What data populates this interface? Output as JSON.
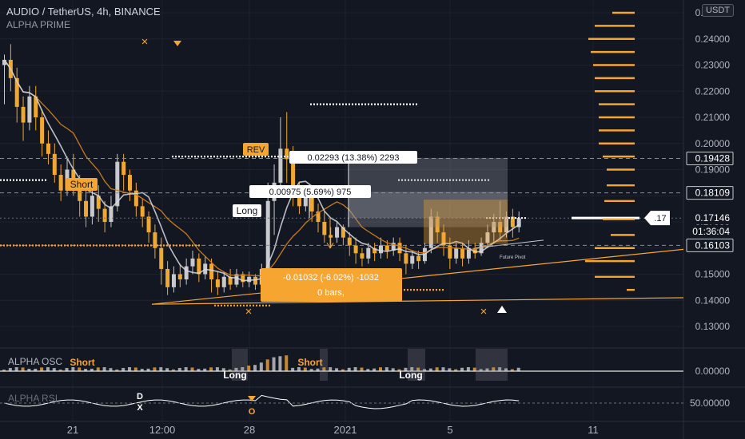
{
  "header": {
    "symbol": "AUDIO / TetherUS, 4h, BINANCE",
    "indicator": "ALPHA PRIME",
    "currency": "USDT"
  },
  "panes": {
    "osc_label": "ALPHA OSC",
    "rsi_label": "ALPHA RSI"
  },
  "colors": {
    "background": "#131722",
    "up": "#c8c9cc",
    "down": "#f0a830",
    "orange": "#f7a531",
    "white": "#ffffff",
    "grid": "#1e2230"
  },
  "chart_data": {
    "type": "candlestick",
    "y_axis": {
      "range": [
        0.125,
        0.26
      ],
      "ticks": [
        "0.13000",
        "0.14000",
        "0.15000",
        "0.16000",
        "0.17000",
        "0.18000",
        "0.19000",
        "0.20000",
        "0.21000",
        "0.22000",
        "0.23000",
        "0.24000",
        "0.25000"
      ],
      "tick_values": [
        0.13,
        0.14,
        0.15,
        0.16,
        0.17,
        0.18,
        0.19,
        0.2,
        0.21,
        0.22,
        0.23,
        0.24,
        0.25
      ]
    },
    "x_axis": {
      "labels": [
        "21",
        "12:00",
        "28",
        "2021",
        "5",
        "11"
      ]
    },
    "price_labels": [
      {
        "text": "0.19428",
        "value": 0.19428,
        "style": "outline"
      },
      {
        "text": "0.18109",
        "value": 0.18109,
        "style": "outline"
      },
      {
        "text": "0.17146",
        "value": 0.17146,
        "style": "plain"
      },
      {
        "text": "01:36:04",
        "value": 0.16631,
        "style": "plain"
      },
      {
        "text": "0.16103",
        "value": 0.16103,
        "style": "outline"
      }
    ],
    "current_price_marker": ".17",
    "annotations": [
      {
        "text": "Short",
        "kind": "tag"
      },
      {
        "text": "REV",
        "kind": "tag"
      },
      {
        "text": "Long",
        "kind": "tag-white"
      },
      {
        "text": "0.02293 (13.38%) 2293",
        "kind": "measure"
      },
      {
        "text": "0.00975 (5.69%) 975",
        "kind": "measure"
      },
      {
        "text": "-0.01032 (-6.02%) -1032",
        "kind": "measure-neg"
      },
      {
        "text": "0 bars,",
        "kind": "measure-neg"
      },
      {
        "text": "Future Pivot",
        "kind": "small"
      }
    ],
    "candles": [
      [
        0.23,
        0.232,
        0.215,
        0.234
      ],
      [
        0.232,
        0.225,
        0.22,
        0.238
      ],
      [
        0.225,
        0.214,
        0.208,
        0.229
      ],
      [
        0.214,
        0.208,
        0.201,
        0.218
      ],
      [
        0.208,
        0.218,
        0.205,
        0.222
      ],
      [
        0.218,
        0.21,
        0.205,
        0.222
      ],
      [
        0.21,
        0.2,
        0.195,
        0.213
      ],
      [
        0.2,
        0.196,
        0.192,
        0.205
      ],
      [
        0.196,
        0.188,
        0.185,
        0.2
      ],
      [
        0.188,
        0.182,
        0.178,
        0.192
      ],
      [
        0.182,
        0.19,
        0.18,
        0.195
      ],
      [
        0.19,
        0.185,
        0.18,
        0.196
      ],
      [
        0.185,
        0.178,
        0.172,
        0.188
      ],
      [
        0.178,
        0.172,
        0.168,
        0.182
      ],
      [
        0.172,
        0.18,
        0.169,
        0.183
      ],
      [
        0.18,
        0.175,
        0.17,
        0.184
      ],
      [
        0.175,
        0.17,
        0.166,
        0.178
      ],
      [
        0.17,
        0.176,
        0.168,
        0.18
      ],
      [
        0.176,
        0.193,
        0.174,
        0.196
      ],
      [
        0.193,
        0.188,
        0.182,
        0.196
      ],
      [
        0.188,
        0.182,
        0.178,
        0.19
      ],
      [
        0.182,
        0.176,
        0.172,
        0.185
      ],
      [
        0.176,
        0.172,
        0.168,
        0.179
      ],
      [
        0.172,
        0.166,
        0.162,
        0.174
      ],
      [
        0.166,
        0.16,
        0.156,
        0.169
      ],
      [
        0.16,
        0.152,
        0.146,
        0.164
      ],
      [
        0.152,
        0.145,
        0.142,
        0.155
      ],
      [
        0.145,
        0.15,
        0.143,
        0.153
      ],
      [
        0.15,
        0.148,
        0.145,
        0.154
      ],
      [
        0.148,
        0.153,
        0.146,
        0.156
      ],
      [
        0.153,
        0.156,
        0.15,
        0.159
      ],
      [
        0.156,
        0.15,
        0.147,
        0.158
      ],
      [
        0.15,
        0.154,
        0.148,
        0.157
      ],
      [
        0.154,
        0.148,
        0.143,
        0.156
      ],
      [
        0.148,
        0.145,
        0.142,
        0.151
      ],
      [
        0.145,
        0.149,
        0.143,
        0.151
      ],
      [
        0.149,
        0.146,
        0.144,
        0.152
      ],
      [
        0.146,
        0.15,
        0.145,
        0.152
      ],
      [
        0.15,
        0.147,
        0.145,
        0.151
      ],
      [
        0.147,
        0.149,
        0.145,
        0.151
      ],
      [
        0.149,
        0.146,
        0.144,
        0.15
      ],
      [
        0.146,
        0.152,
        0.145,
        0.154
      ],
      [
        0.152,
        0.178,
        0.15,
        0.185
      ],
      [
        0.178,
        0.185,
        0.165,
        0.192
      ],
      [
        0.185,
        0.198,
        0.18,
        0.21
      ],
      [
        0.198,
        0.194,
        0.185,
        0.212
      ],
      [
        0.194,
        0.18,
        0.176,
        0.199
      ],
      [
        0.18,
        0.176,
        0.173,
        0.185
      ],
      [
        0.176,
        0.18,
        0.174,
        0.184
      ],
      [
        0.18,
        0.174,
        0.17,
        0.183
      ],
      [
        0.174,
        0.17,
        0.166,
        0.177
      ],
      [
        0.17,
        0.165,
        0.162,
        0.174
      ],
      [
        0.165,
        0.164,
        0.16,
        0.168
      ],
      [
        0.164,
        0.168,
        0.162,
        0.17
      ],
      [
        0.168,
        0.164,
        0.161,
        0.169
      ],
      [
        0.164,
        0.161,
        0.157,
        0.166
      ],
      [
        0.161,
        0.158,
        0.154,
        0.164
      ],
      [
        0.158,
        0.156,
        0.153,
        0.16
      ],
      [
        0.156,
        0.16,
        0.154,
        0.162
      ],
      [
        0.16,
        0.158,
        0.155,
        0.162
      ],
      [
        0.158,
        0.161,
        0.156,
        0.164
      ],
      [
        0.161,
        0.159,
        0.156,
        0.163
      ],
      [
        0.159,
        0.162,
        0.157,
        0.164
      ],
      [
        0.162,
        0.158,
        0.155,
        0.164
      ],
      [
        0.158,
        0.154,
        0.15,
        0.161
      ],
      [
        0.154,
        0.157,
        0.152,
        0.159
      ],
      [
        0.157,
        0.155,
        0.152,
        0.159
      ],
      [
        0.155,
        0.16,
        0.154,
        0.162
      ],
      [
        0.16,
        0.172,
        0.158,
        0.175
      ],
      [
        0.172,
        0.166,
        0.162,
        0.174
      ],
      [
        0.166,
        0.161,
        0.157,
        0.169
      ],
      [
        0.161,
        0.156,
        0.152,
        0.164
      ],
      [
        0.156,
        0.16,
        0.154,
        0.162
      ],
      [
        0.16,
        0.156,
        0.153,
        0.162
      ],
      [
        0.156,
        0.16,
        0.154,
        0.163
      ],
      [
        0.16,
        0.158,
        0.156,
        0.162
      ],
      [
        0.158,
        0.162,
        0.157,
        0.164
      ],
      [
        0.162,
        0.166,
        0.16,
        0.169
      ],
      [
        0.166,
        0.17,
        0.162,
        0.173
      ],
      [
        0.17,
        0.166,
        0.163,
        0.178
      ],
      [
        0.166,
        0.172,
        0.164,
        0.174
      ],
      [
        0.172,
        0.168,
        0.164,
        0.175
      ],
      [
        0.168,
        0.1715,
        0.166,
        0.174
      ]
    ],
    "levels": [
      {
        "value": 0.215,
        "style": "dotted-white"
      },
      {
        "value": 0.195,
        "style": "dotted-white"
      },
      {
        "value": 0.186,
        "style": "dotted-white"
      },
      {
        "value": 0.161,
        "style": "dotted-orange"
      },
      {
        "value": 0.144,
        "style": "dotted-orange"
      },
      {
        "value": 0.138,
        "style": "dotted-orange"
      }
    ],
    "pivot_ladder": [
      0.258,
      0.25,
      0.245,
      0.24,
      0.235,
      0.23,
      0.225,
      0.22,
      0.215,
      0.21,
      0.205,
      0.2,
      0.195,
      0.19,
      0.184,
      0.178,
      0.171,
      0.165,
      0.16,
      0.155,
      0.149,
      0.144
    ],
    "osc_pane": {
      "tick_labels": [
        "0.00000"
      ],
      "annotations": [
        "Short",
        "Long",
        "Short",
        "Long"
      ]
    },
    "rsi_pane": {
      "tick_labels": [
        "50.00000"
      ],
      "annotations": [
        "D",
        "X",
        "O"
      ]
    }
  }
}
